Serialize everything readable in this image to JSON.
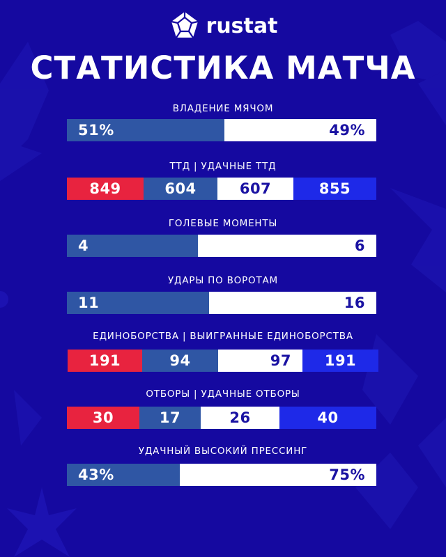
{
  "header": {
    "brand": "rustat",
    "logo_icon": "pentagon-ball-icon",
    "title": "СТАТИСТИКА МАТЧА"
  },
  "colors": {
    "background": "#1509a0",
    "team1_total": "#e8233f",
    "team1": "#2f56a4",
    "team2": "#ffffff",
    "team2_total": "#1e29e8"
  },
  "stats": {
    "possession": {
      "label": "ВЛАДЕНИЕ МЯЧОМ",
      "home": "51%",
      "away": "49%"
    },
    "passes": {
      "label": "ТТД | УДАЧНЫЕ ТТД",
      "home_total": "849",
      "home_ok": "604",
      "away_ok": "607",
      "away_total": "855"
    },
    "chances": {
      "label": "ГОЛЕВЫЕ МОМЕНТЫ",
      "home": "4",
      "away": "6"
    },
    "shots_on_target": {
      "label": "УДАРЫ ПО ВОРОТАМ",
      "home": "11",
      "away": "16"
    },
    "duels": {
      "label": "ЕДИНОБОРСТВА | ВЫИГРАННЫЕ ЕДИНОБОРСТВА",
      "home_total": "191",
      "home_ok": "94",
      "away_ok": "97",
      "away_total": "191"
    },
    "tackles": {
      "label": "ОТБОРЫ | УДАЧНЫЕ ОТБОРЫ",
      "home_total": "30",
      "home_ok": "17",
      "away_ok": "26",
      "away_total": "40"
    },
    "high_press": {
      "label": "УДАЧНЫЙ ВЫСОКИЙ ПРЕССИНГ",
      "home": "43%",
      "away": "75%"
    }
  }
}
